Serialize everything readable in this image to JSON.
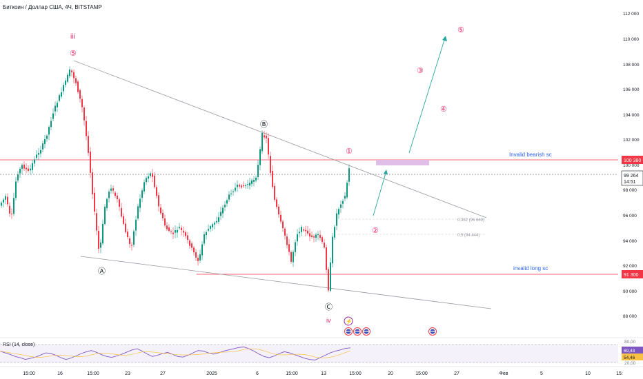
{
  "header": {
    "title": "Биткоин / Доллар США, 4Ч, BITSTAMP"
  },
  "colors": {
    "up": "#089981",
    "down": "#f23645",
    "wave_red": "#e91e63",
    "label_blue": "#2962ff",
    "level_red": "#f23645",
    "trend_grey": "#9598a1",
    "arrow_green": "#26a69a",
    "zone_pink": "#e1bee7",
    "rsi_line": "#7e57c2",
    "rsi_ma": "#f7c244"
  },
  "price_axis": {
    "ticks": [
      "112 000",
      "110 000",
      "108 000",
      "106 000",
      "104 000",
      "102 000",
      "100 000",
      "98 000",
      "96 000",
      "94 000",
      "92 000",
      "90 000",
      "88 000"
    ]
  },
  "price_tags": {
    "resistance": "100 380",
    "current": "99 264",
    "countdown": "14:51",
    "support": "91 300"
  },
  "time_axis": {
    "ticks": [
      "15:00",
      "16",
      "15:00",
      "23",
      "27",
      "2025",
      "6",
      "15:00",
      "13",
      "15:00",
      "20",
      "15:00",
      "27",
      "Фев",
      "5",
      "10",
      "15:"
    ]
  },
  "waves": {
    "iii": "iii",
    "iii_5": "⑤",
    "A": "Ⓐ",
    "B": "Ⓑ",
    "C": "Ⓒ",
    "iv": "iv",
    "proj_1": "①",
    "proj_2": "②",
    "proj_3": "③",
    "proj_4": "④",
    "proj_5": "⑤"
  },
  "annotations": {
    "invalid_bearish": "Invalid bearish sc",
    "invalid_long": "invalid long sc",
    "fib_382": "0,382 (95 669)",
    "fib_5": "0,5 (94 444)"
  },
  "events": {
    "lightning": "⚡",
    "flag": "US"
  },
  "rsi": {
    "title": "RSI (14, close)",
    "axis": [
      "80,00",
      "20,00"
    ],
    "value_1": "69,43",
    "value_2": "54,46",
    "series": [
      58,
      52,
      47,
      40,
      36,
      30,
      34,
      38,
      45,
      52,
      50,
      44,
      36,
      30,
      35,
      42,
      50,
      56,
      60,
      54,
      46,
      40,
      37,
      42,
      48,
      55,
      62,
      66,
      58,
      48,
      40,
      44,
      50,
      54,
      47,
      40,
      38,
      44,
      52,
      60,
      58,
      52,
      48,
      52,
      58,
      62,
      66,
      70,
      72,
      66,
      58,
      48,
      40,
      36,
      42,
      50,
      56,
      52,
      46,
      40,
      34,
      30,
      28,
      36,
      44,
      52,
      58,
      62,
      67,
      69
    ]
  }
}
